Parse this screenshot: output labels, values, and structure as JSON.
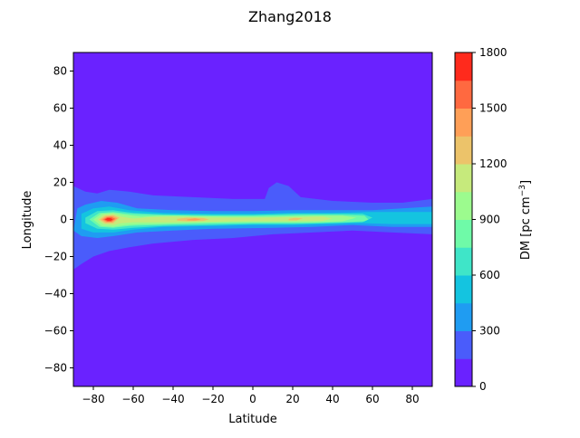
{
  "chart_data": {
    "type": "heatmap",
    "title": "Zhang2018",
    "xlabel": "Latitude",
    "ylabel": "Longitude",
    "xlim": [
      -90,
      90
    ],
    "ylim": [
      -90,
      90
    ],
    "xticks": [
      -80,
      -60,
      -40,
      -20,
      0,
      20,
      40,
      60,
      80
    ],
    "yticks": [
      -80,
      -60,
      -40,
      -20,
      0,
      20,
      40,
      60,
      80
    ],
    "xtick_labels": [
      "−80",
      "−60",
      "−40",
      "−20",
      "0",
      "20",
      "40",
      "60",
      "80"
    ],
    "ytick_labels": [
      "−80",
      "−60",
      "−40",
      "−20",
      "0",
      "20",
      "40",
      "60",
      "80"
    ],
    "colorbar": {
      "label": "DM [pc cm",
      "label_sup": "−3",
      "label_end": "]",
      "range": [
        0,
        1800
      ],
      "tick_values": [
        0,
        300,
        600,
        900,
        1200,
        1500,
        1800
      ],
      "tick_labels": [
        "0",
        "300",
        "600",
        "900",
        "1200",
        "1500",
        "1800"
      ],
      "levels": [
        0,
        150,
        300,
        450,
        600,
        750,
        900,
        1050,
        1200,
        1350,
        1500,
        1650,
        1800
      ],
      "colors": [
        "#6a22ff",
        "#4a5cfb",
        "#1f9cf2",
        "#14c4e0",
        "#3fe5c8",
        "#6ffaa8",
        "#9cfb8e",
        "#c6ea7c",
        "#ecc36a",
        "#ff9f57",
        "#ff6940",
        "#ff2a1c"
      ]
    },
    "contours": [
      {
        "level": 1,
        "points": [
          [
            -90,
            18
          ],
          [
            -84,
            15
          ],
          [
            -78,
            14
          ],
          [
            -72,
            16
          ],
          [
            -62,
            15
          ],
          [
            -50,
            13
          ],
          [
            -30,
            12
          ],
          [
            -10,
            11
          ],
          [
            6,
            11
          ],
          [
            8,
            17
          ],
          [
            12,
            20
          ],
          [
            18,
            18
          ],
          [
            24,
            12
          ],
          [
            40,
            10
          ],
          [
            60,
            9
          ],
          [
            75,
            9
          ],
          [
            90,
            11
          ],
          [
            90,
            -8
          ],
          [
            70,
            -7
          ],
          [
            50,
            -6
          ],
          [
            30,
            -7
          ],
          [
            10,
            -8
          ],
          [
            -10,
            -10
          ],
          [
            -30,
            -11
          ],
          [
            -50,
            -13
          ],
          [
            -62,
            -15
          ],
          [
            -72,
            -17
          ],
          [
            -80,
            -20
          ],
          [
            -86,
            -24
          ],
          [
            -90,
            -27
          ]
        ]
      },
      {
        "level": 2,
        "points": [
          [
            -88,
            6
          ],
          [
            -84,
            8
          ],
          [
            -76,
            10
          ],
          [
            -68,
            9
          ],
          [
            -58,
            6
          ],
          [
            -40,
            5
          ],
          [
            -20,
            4.5
          ],
          [
            0,
            4.5
          ],
          [
            20,
            5
          ],
          [
            40,
            5
          ],
          [
            60,
            5
          ],
          [
            75,
            6
          ],
          [
            90,
            7
          ],
          [
            90,
            -4
          ],
          [
            70,
            -4
          ],
          [
            50,
            -3
          ],
          [
            30,
            -4
          ],
          [
            10,
            -4.5
          ],
          [
            -20,
            -5
          ],
          [
            -40,
            -6
          ],
          [
            -58,
            -7
          ],
          [
            -70,
            -9
          ],
          [
            -78,
            -10
          ],
          [
            -86,
            -9
          ],
          [
            -90,
            -6
          ]
        ]
      },
      {
        "level": 3,
        "points": [
          [
            -86,
            3
          ],
          [
            -80,
            6
          ],
          [
            -72,
            7
          ],
          [
            -62,
            5
          ],
          [
            -45,
            3.5
          ],
          [
            -20,
            3
          ],
          [
            0,
            3
          ],
          [
            20,
            3.5
          ],
          [
            40,
            3.5
          ],
          [
            58,
            4
          ],
          [
            70,
            4
          ],
          [
            82,
            4
          ],
          [
            90,
            4
          ],
          [
            90,
            -2.5
          ],
          [
            70,
            -2.5
          ],
          [
            55,
            -2
          ],
          [
            40,
            -2.5
          ],
          [
            20,
            -3
          ],
          [
            0,
            -3
          ],
          [
            -20,
            -3.5
          ],
          [
            -45,
            -4
          ],
          [
            -60,
            -5.5
          ],
          [
            -70,
            -7
          ],
          [
            -80,
            -7
          ],
          [
            -86,
            -5
          ]
        ]
      },
      {
        "level": 4,
        "points": [
          [
            -84,
            1
          ],
          [
            -78,
            4.5
          ],
          [
            -70,
            5
          ],
          [
            -60,
            3.5
          ],
          [
            -45,
            2.8
          ],
          [
            -20,
            2.5
          ],
          [
            0,
            2.5
          ],
          [
            20,
            3
          ],
          [
            40,
            3
          ],
          [
            55,
            3
          ],
          [
            60,
            1
          ],
          [
            55,
            -1.5
          ],
          [
            40,
            -2
          ],
          [
            20,
            -2.5
          ],
          [
            0,
            -2.5
          ],
          [
            -20,
            -3
          ],
          [
            -45,
            -3.5
          ],
          [
            -60,
            -4.5
          ],
          [
            -70,
            -5.5
          ],
          [
            -78,
            -5
          ],
          [
            -84,
            -2
          ]
        ]
      },
      {
        "level": 5,
        "points": [
          [
            -82,
            0
          ],
          [
            -77,
            3.5
          ],
          [
            -70,
            4
          ],
          [
            -62,
            3
          ],
          [
            -50,
            2.5
          ],
          [
            -30,
            2
          ],
          [
            0,
            2
          ],
          [
            25,
            2.5
          ],
          [
            45,
            2.5
          ],
          [
            56,
            2
          ],
          [
            58,
            0
          ],
          [
            56,
            -1
          ],
          [
            45,
            -1.5
          ],
          [
            25,
            -2
          ],
          [
            0,
            -2
          ],
          [
            -30,
            -2.5
          ],
          [
            -50,
            -3
          ],
          [
            -62,
            -3.5
          ],
          [
            -70,
            -4.5
          ],
          [
            -77,
            -4
          ]
        ]
      },
      {
        "level": 6,
        "points": [
          [
            -80,
            0
          ],
          [
            -76,
            3
          ],
          [
            -70,
            3.5
          ],
          [
            -64,
            2.5
          ],
          [
            -56,
            1.5
          ],
          [
            -48,
            2
          ],
          [
            -35,
            2
          ],
          [
            -10,
            1.5
          ],
          [
            10,
            1.5
          ],
          [
            30,
            2
          ],
          [
            45,
            2
          ],
          [
            52,
            1
          ],
          [
            45,
            -1
          ],
          [
            30,
            -1.5
          ],
          [
            10,
            -1.5
          ],
          [
            -10,
            -1.5
          ],
          [
            -35,
            -2
          ],
          [
            -48,
            -2.5
          ],
          [
            -56,
            -2.5
          ],
          [
            -64,
            -3
          ],
          [
            -70,
            -4
          ],
          [
            -76,
            -3.5
          ]
        ]
      },
      {
        "level": 7,
        "points": [
          [
            -78,
            0
          ],
          [
            -75,
            2.5
          ],
          [
            -70,
            3
          ],
          [
            -66,
            1.5
          ],
          [
            -60,
            0.5
          ],
          [
            -52,
            1.2
          ],
          [
            -40,
            1.5
          ],
          [
            -20,
            1
          ],
          [
            0,
            1
          ],
          [
            20,
            1.2
          ],
          [
            35,
            1.5
          ],
          [
            40,
            0.5
          ],
          [
            35,
            -0.8
          ],
          [
            20,
            -1
          ],
          [
            0,
            -1
          ],
          [
            -20,
            -1.2
          ],
          [
            -40,
            -1.5
          ],
          [
            -52,
            -1.5
          ],
          [
            -60,
            -1.5
          ],
          [
            -66,
            -2
          ],
          [
            -70,
            -3
          ],
          [
            -75,
            -2.5
          ]
        ]
      },
      {
        "level": 8,
        "points": [
          [
            -77,
            0
          ],
          [
            -74,
            2
          ],
          [
            -70,
            2.3
          ],
          [
            -67,
            1
          ],
          [
            -70,
            -2
          ],
          [
            -74,
            -2
          ]
        ]
      },
      {
        "level": 8,
        "points": [
          [
            -38,
            0.3
          ],
          [
            -33,
            1
          ],
          [
            -25,
            0.8
          ],
          [
            -22,
            0
          ],
          [
            -25,
            -0.8
          ],
          [
            -33,
            -1
          ],
          [
            -38,
            -0.6
          ]
        ]
      },
      {
        "level": 8,
        "points": [
          [
            18,
            0.3
          ],
          [
            21,
            0.9
          ],
          [
            25,
            0.6
          ],
          [
            22,
            -0.5
          ],
          [
            18,
            -0.5
          ]
        ]
      },
      {
        "level": 9,
        "points": [
          [
            -76,
            0
          ],
          [
            -73.5,
            1.6
          ],
          [
            -70.5,
            1.8
          ],
          [
            -68,
            0.6
          ],
          [
            -70.5,
            -1.6
          ],
          [
            -73.5,
            -1.6
          ]
        ]
      },
      {
        "level": 9,
        "points": [
          [
            -33,
            0
          ],
          [
            -29,
            0.6
          ],
          [
            -26,
            0
          ],
          [
            -29,
            -0.6
          ],
          [
            -33,
            -0.5
          ]
        ]
      },
      {
        "level": 10,
        "points": [
          [
            -75,
            0
          ],
          [
            -73,
            1.2
          ],
          [
            -71,
            1.3
          ],
          [
            -69,
            0.3
          ],
          [
            -71,
            -1.2
          ],
          [
            -73,
            -1.2
          ]
        ]
      },
      {
        "level": 11,
        "points": [
          [
            -74.2,
            0
          ],
          [
            -72.8,
            0.8
          ],
          [
            -71.2,
            0.7
          ],
          [
            -70.2,
            0
          ],
          [
            -71.2,
            -0.7
          ],
          [
            -72.8,
            -0.7
          ]
        ]
      }
    ]
  }
}
